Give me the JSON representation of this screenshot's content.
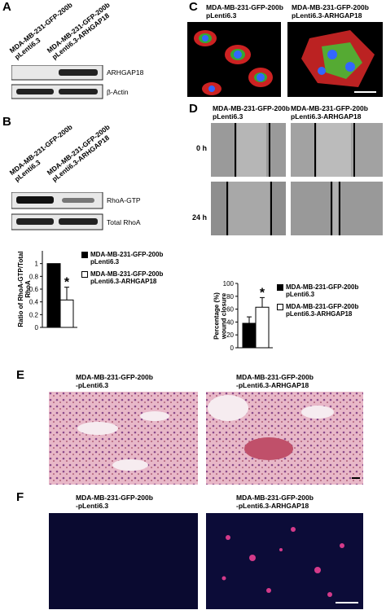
{
  "panels": {
    "A": {
      "letter": "A",
      "lanes": [
        [
          "MDA-MB-231-GFP-200b",
          "pLenti6.3"
        ],
        [
          "MDA-MB-231-GFP-200b",
          "pLenti6.3-ARHGAP18"
        ]
      ],
      "blots": [
        "ARHGAP18",
        "β-Actin"
      ]
    },
    "B": {
      "letter": "B",
      "lanes": [
        [
          "MDA-MB-231-GFP-200b",
          "pLenti6.3"
        ],
        [
          "MDA-MB-231-GFP-200b",
          "pLenti6.3-ARHGAP18"
        ]
      ],
      "blots": [
        "RhoA-GTP",
        "Total RhoA"
      ]
    },
    "C": {
      "letter": "C",
      "labels": [
        [
          "MDA-MB-231-GFP-200b",
          "pLenti6.3"
        ],
        [
          "MDA-MB-231-GFP-200b",
          "pLenti6.3-ARHGAP18"
        ]
      ]
    },
    "D": {
      "letter": "D",
      "labels": [
        [
          "MDA-MB-231-GFP-200b",
          "pLenti6.3"
        ],
        [
          "MDA-MB-231-GFP-200b",
          "pLenti6.3-ARHGAP18"
        ]
      ],
      "times": [
        "0 h",
        "24 h"
      ]
    },
    "E": {
      "letter": "E",
      "labels": [
        [
          "MDA-MB-231-GFP-200b",
          "-pLenti6.3"
        ],
        [
          "MDA-MB-231-GFP-200b",
          "-pLenti6.3-ARHGAP18"
        ]
      ]
    },
    "F": {
      "letter": "F",
      "labels": [
        [
          "MDA-MB-231-GFP-200b",
          "-pLenti6.3"
        ],
        [
          "MDA-MB-231-GFP-200b",
          "-pLenti6.3-ARHGAP18"
        ]
      ]
    }
  },
  "chart_data": [
    {
      "type": "bar",
      "y_label": "Ratio of RhoA-GTP/Total RhoA",
      "annotation": "*",
      "ylim": [
        0,
        1.2
      ],
      "yticks": [
        0,
        0.2,
        0.4,
        0.6,
        0.8,
        1
      ],
      "series": [
        {
          "name": "MDA-MB-231-GFP-200b pLenti6.3",
          "color": "#000000",
          "values": [
            1
          ]
        },
        {
          "name": "MDA-MB-231-GFP-200b pLenti6.3-ARHGAP18",
          "color": "#ffffff",
          "values": [
            0.43
          ],
          "errors": [
            0.2
          ]
        }
      ]
    },
    {
      "type": "bar",
      "y_label": "Percentage (%) wound closure",
      "annotation": "*",
      "ylim": [
        0,
        100
      ],
      "yticks": [
        0,
        20,
        40,
        60,
        80,
        100
      ],
      "series": [
        {
          "name": "MDA-MB-231-GFP-200b pLenti6.3",
          "color": "#000000",
          "values": [
            38
          ],
          "errors": [
            10
          ]
        },
        {
          "name": "MDA-MB-231-GFP-200b pLenti6.3-ARHGAP18",
          "color": "#ffffff",
          "values": [
            63
          ],
          "errors": [
            15
          ]
        }
      ]
    }
  ]
}
